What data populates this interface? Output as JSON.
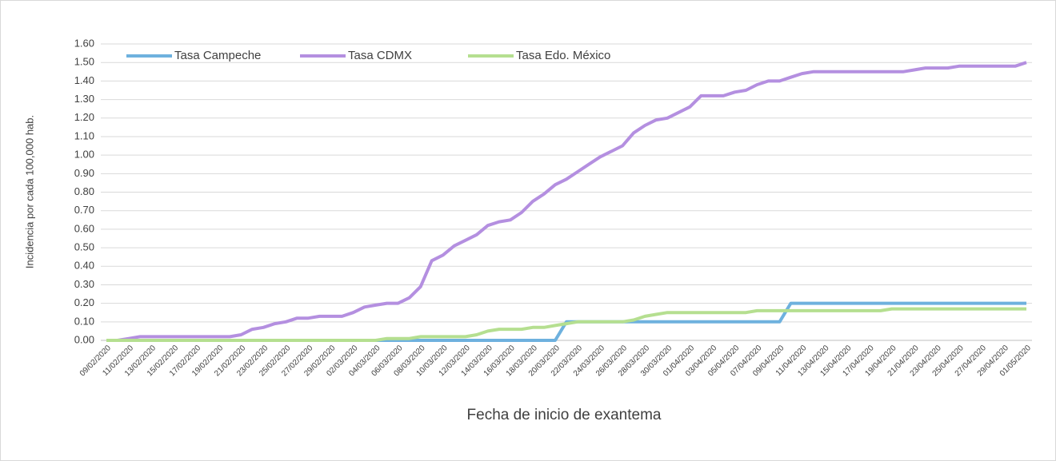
{
  "chart_data": {
    "type": "line",
    "xlabel": "Fecha de inicio de exantema",
    "ylabel": "Incidencia por cada 100,000 hab.",
    "categories": [
      "09/02/2020",
      null,
      "11/02/2020",
      null,
      "13/02/2020",
      null,
      "15/02/2020",
      null,
      "17/02/2020",
      null,
      "19/02/2020",
      null,
      "21/02/2020",
      null,
      "23/02/2020",
      null,
      "25/02/2020",
      null,
      "27/02/2020",
      null,
      "29/02/2020",
      null,
      "02/03/2020",
      null,
      "04/03/2020",
      null,
      "06/03/2020",
      null,
      "08/03/2020",
      null,
      "10/03/2020",
      null,
      "12/03/2020",
      null,
      "14/03/2020",
      null,
      "16/03/2020",
      null,
      "18/03/2020",
      null,
      "20/03/2020",
      null,
      "22/03/2020",
      null,
      "24/03/2020",
      null,
      "26/03/2020",
      null,
      "28/03/2020",
      null,
      "30/03/2020",
      null,
      "01/04/2020",
      null,
      "03/04/2020",
      null,
      "05/04/2020",
      null,
      "07/04/2020",
      null,
      "09/04/2020",
      null,
      "11/04/2020",
      null,
      "13/04/2020",
      null,
      "15/04/2020",
      null,
      "17/04/2020",
      null,
      "19/04/2020",
      null,
      "21/04/2020",
      null,
      "23/04/2020",
      null,
      "25/04/2020",
      null,
      "27/04/2020",
      null,
      "29/04/2020",
      null,
      "01/05/2020"
    ],
    "series": [
      {
        "name": "Tasa Campeche",
        "color": "#6eb1de",
        "values": [
          0,
          0,
          0,
          0,
          0,
          0,
          0,
          0,
          0,
          0,
          0,
          0,
          0,
          0,
          0,
          0,
          0,
          0,
          0,
          0,
          0,
          0,
          0,
          0,
          0,
          0,
          0,
          0,
          0,
          0,
          0,
          0,
          0,
          0,
          0,
          0,
          0,
          0,
          0,
          0,
          0,
          0.1,
          0.1,
          0.1,
          0.1,
          0.1,
          0.1,
          0.1,
          0.1,
          0.1,
          0.1,
          0.1,
          0.1,
          0.1,
          0.1,
          0.1,
          0.1,
          0.1,
          0.1,
          0.1,
          0.1,
          0.2,
          0.2,
          0.2,
          0.2,
          0.2,
          0.2,
          0.2,
          0.2,
          0.2,
          0.2,
          0.2,
          0.2,
          0.2,
          0.2,
          0.2,
          0.2,
          0.2,
          0.2,
          0.2,
          0.2,
          0.2,
          0.2
        ]
      },
      {
        "name": "Tasa CDMX",
        "color": "#b48fe0",
        "values": [
          0,
          0,
          0.01,
          0.02,
          0.02,
          0.02,
          0.02,
          0.02,
          0.02,
          0.02,
          0.02,
          0.02,
          0.03,
          0.06,
          0.07,
          0.09,
          0.1,
          0.12,
          0.12,
          0.13,
          0.13,
          0.13,
          0.15,
          0.18,
          0.19,
          0.2,
          0.2,
          0.23,
          0.29,
          0.43,
          0.46,
          0.51,
          0.54,
          0.57,
          0.62,
          0.64,
          0.65,
          0.69,
          0.75,
          0.79,
          0.84,
          0.87,
          0.91,
          0.95,
          0.99,
          1.02,
          1.05,
          1.12,
          1.16,
          1.19,
          1.2,
          1.23,
          1.26,
          1.32,
          1.32,
          1.32,
          1.34,
          1.35,
          1.38,
          1.4,
          1.4,
          1.42,
          1.44,
          1.45,
          1.45,
          1.45,
          1.45,
          1.45,
          1.45,
          1.45,
          1.45,
          1.45,
          1.46,
          1.47,
          1.47,
          1.47,
          1.48,
          1.48,
          1.48,
          1.48,
          1.48,
          1.48,
          1.5
        ]
      },
      {
        "name": "Tasa Edo. México",
        "color": "#b5df90",
        "values": [
          0,
          0,
          0,
          0,
          0,
          0,
          0,
          0,
          0,
          0,
          0,
          0,
          0,
          0,
          0,
          0,
          0,
          0,
          0,
          0,
          0,
          0,
          0,
          0,
          0,
          0.01,
          0.01,
          0.01,
          0.02,
          0.02,
          0.02,
          0.02,
          0.02,
          0.03,
          0.05,
          0.06,
          0.06,
          0.06,
          0.07,
          0.07,
          0.08,
          0.09,
          0.1,
          0.1,
          0.1,
          0.1,
          0.1,
          0.11,
          0.13,
          0.14,
          0.15,
          0.15,
          0.15,
          0.15,
          0.15,
          0.15,
          0.15,
          0.15,
          0.16,
          0.16,
          0.16,
          0.16,
          0.16,
          0.16,
          0.16,
          0.16,
          0.16,
          0.16,
          0.16,
          0.16,
          0.17,
          0.17,
          0.17,
          0.17,
          0.17,
          0.17,
          0.17,
          0.17,
          0.17,
          0.17,
          0.17,
          0.17,
          0.17
        ]
      }
    ],
    "ylim": [
      0,
      1.6
    ],
    "yticks": [
      {
        "value": 0,
        "label": "0.00"
      },
      {
        "value": 0.1,
        "label": "0.10"
      },
      {
        "value": 0.2,
        "label": "0.20"
      },
      {
        "value": 0.3,
        "label": "0.30"
      },
      {
        "value": 0.4,
        "label": "0.40"
      },
      {
        "value": 0.5,
        "label": "0.50"
      },
      {
        "value": 0.6,
        "label": "0.60"
      },
      {
        "value": 0.7,
        "label": "0.70"
      },
      {
        "value": 0.8,
        "label": "0.80"
      },
      {
        "value": 0.9,
        "label": "0.90"
      },
      {
        "value": 1,
        "label": "1.00"
      },
      {
        "value": 1.1,
        "label": "1.10"
      },
      {
        "value": 1.2,
        "label": "1.20"
      },
      {
        "value": 1.3,
        "label": "1.30"
      },
      {
        "value": 1.4,
        "label": "1.40"
      },
      {
        "value": 1.5,
        "label": "1.50"
      },
      {
        "value": 1.6,
        "label": "1.60"
      }
    ],
    "grid": true,
    "legend": "top-left"
  }
}
